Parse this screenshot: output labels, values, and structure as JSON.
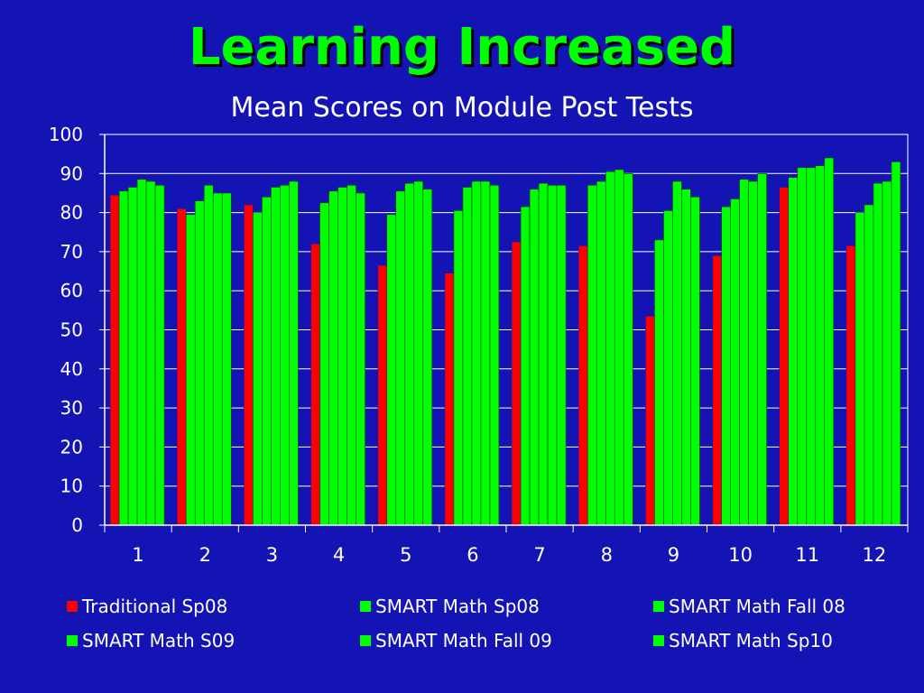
{
  "slide": {
    "title": "Learning Increased"
  },
  "chart_data": {
    "type": "bar",
    "title": "Mean Scores on Module Post Tests",
    "xlabel": "",
    "ylabel": "",
    "ylim": [
      0,
      100
    ],
    "yticks": [
      0,
      10,
      20,
      30,
      40,
      50,
      60,
      70,
      80,
      90,
      100
    ],
    "grid": true,
    "legend_position": "bottom",
    "categories": [
      "1",
      "2",
      "3",
      "4",
      "5",
      "6",
      "7",
      "8",
      "9",
      "10",
      "11",
      "12"
    ],
    "series": [
      {
        "name": "Traditional Sp08",
        "color": "#ff0000",
        "values": [
          84.5,
          81,
          82,
          72,
          66.5,
          64.5,
          72.5,
          71.5,
          53.5,
          69,
          86.5,
          71.5
        ]
      },
      {
        "name": "SMART Math Sp08",
        "color": "#00ff00",
        "values": [
          85.5,
          79.5,
          80,
          82.5,
          79.5,
          80.5,
          81.5,
          87,
          73,
          81.5,
          89,
          80
        ]
      },
      {
        "name": "SMART Math Fall 08",
        "color": "#00ff00",
        "values": [
          86.5,
          83,
          84,
          85.5,
          85.5,
          86.5,
          86,
          88,
          80.5,
          83.5,
          91.5,
          82
        ]
      },
      {
        "name": "SMART Math S09",
        "color": "#00ff00",
        "values": [
          88.5,
          87,
          86.5,
          86.5,
          87.5,
          88,
          87.5,
          90.5,
          88,
          88.5,
          91.5,
          87.5
        ]
      },
      {
        "name": "SMART Math Fall 09",
        "color": "#00ff00",
        "values": [
          88,
          85,
          87,
          87,
          88,
          88,
          87,
          91,
          86,
          88,
          92,
          88
        ]
      },
      {
        "name": "SMART Math Sp10",
        "color": "#00ff00",
        "values": [
          87,
          85,
          88,
          85,
          86,
          87,
          87,
          90,
          84,
          90,
          94,
          93
        ]
      }
    ]
  }
}
